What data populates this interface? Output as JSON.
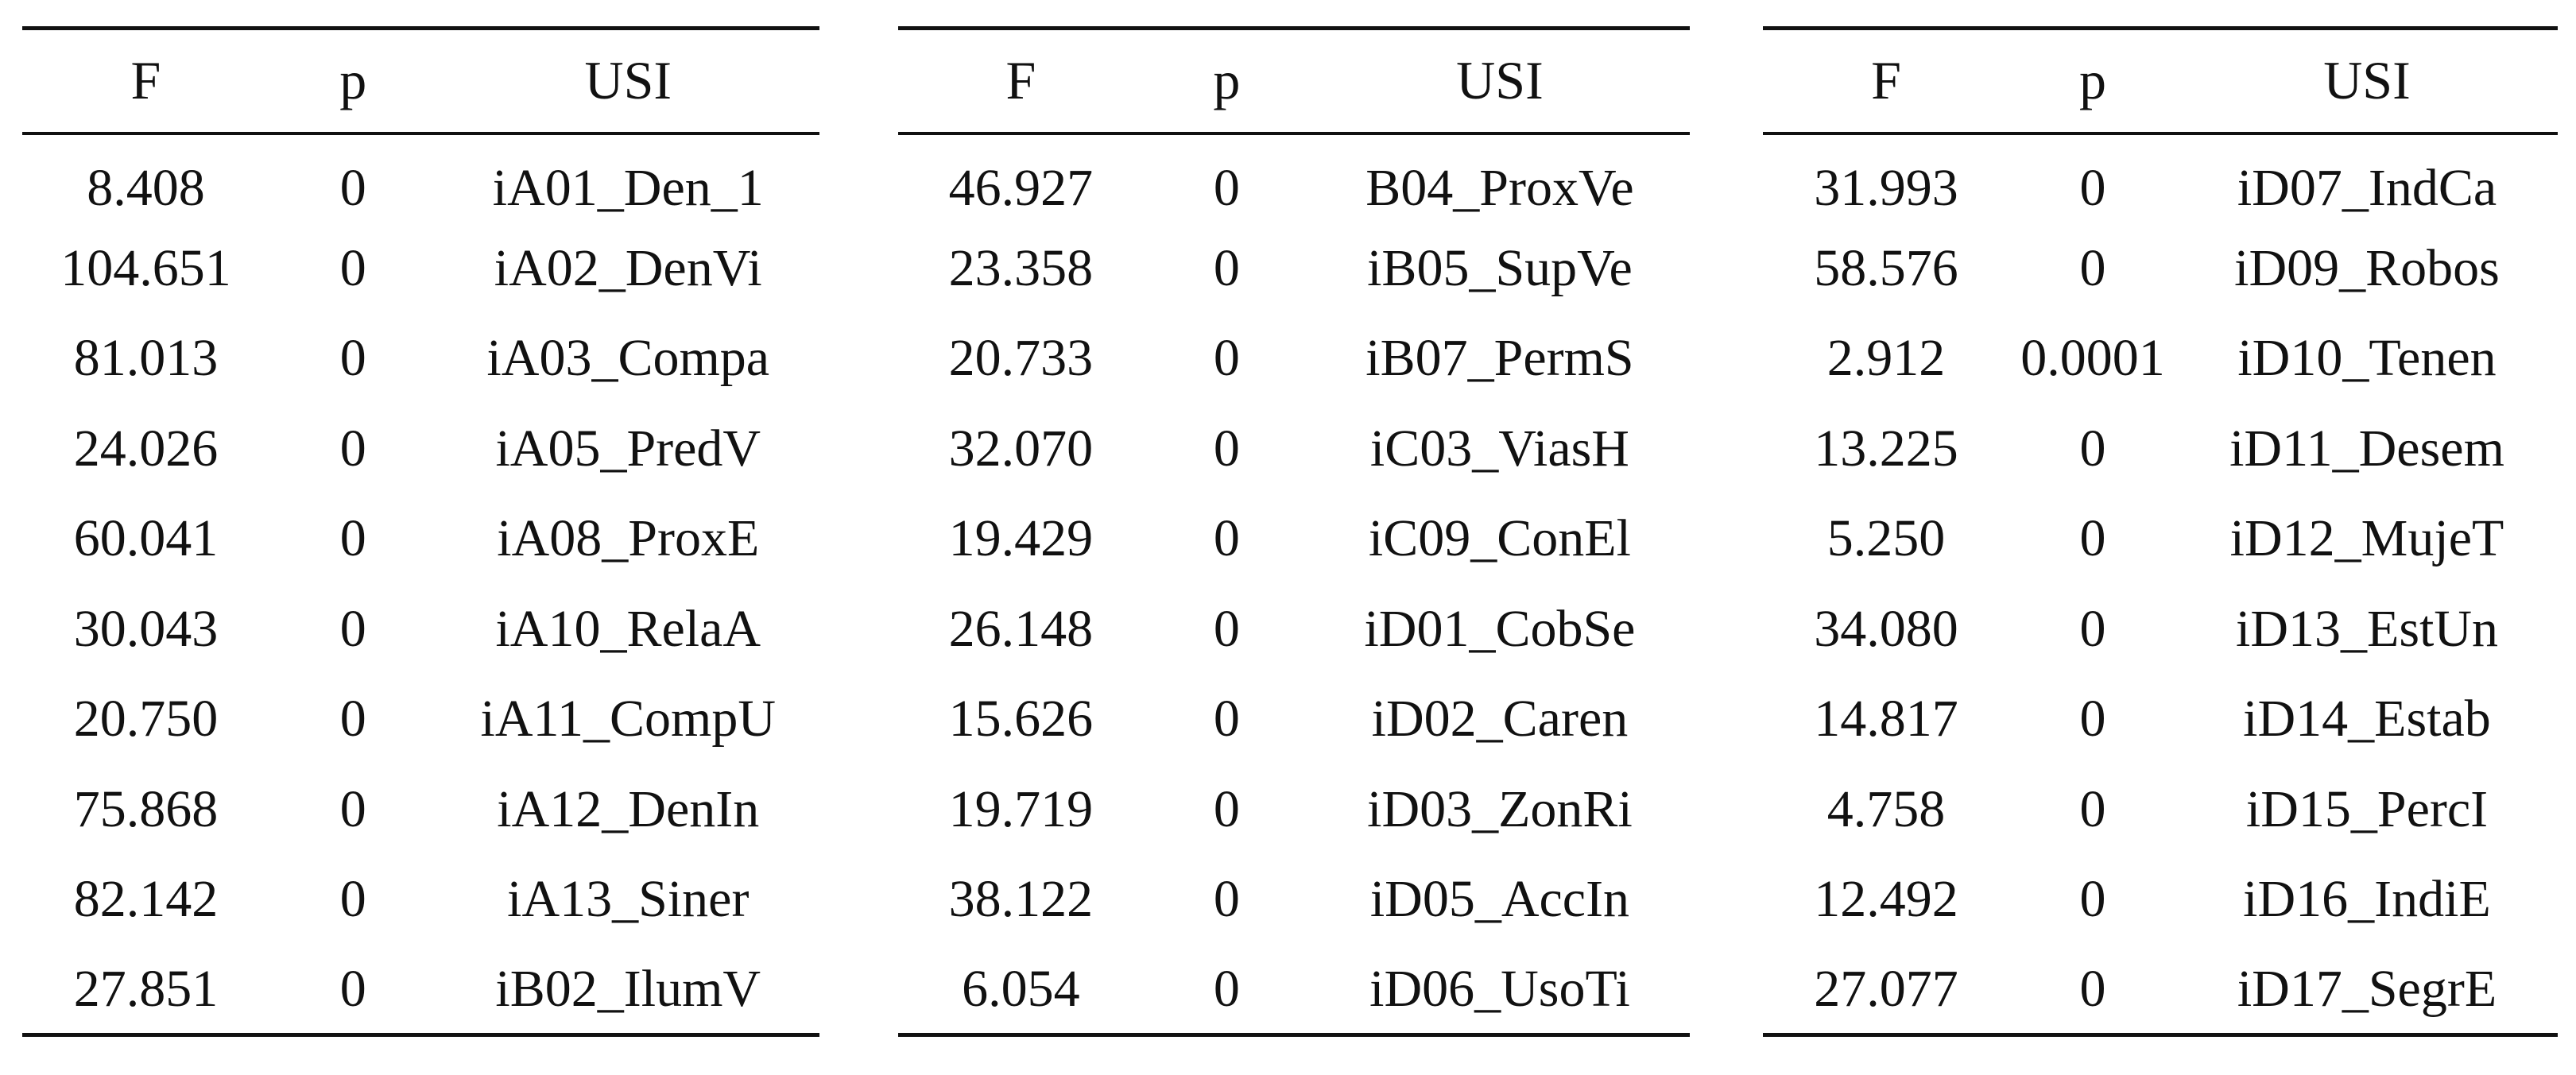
{
  "tables": [
    {
      "headers": [
        "F",
        "p",
        "USI"
      ],
      "rows": [
        {
          "f": "8.408",
          "p": "0",
          "usi": "iA01_Den_1"
        },
        {
          "f": "104.651",
          "p": "0",
          "usi": "iA02_DenVi"
        },
        {
          "f": "81.013",
          "p": "0",
          "usi": "iA03_Compa"
        },
        {
          "f": "24.026",
          "p": "0",
          "usi": "iA05_PredV"
        },
        {
          "f": "60.041",
          "p": "0",
          "usi": "iA08_ProxE"
        },
        {
          "f": "30.043",
          "p": "0",
          "usi": "iA10_RelaA"
        },
        {
          "f": "20.750",
          "p": "0",
          "usi": "iA11_CompU"
        },
        {
          "f": "75.868",
          "p": "0",
          "usi": "iA12_DenIn"
        },
        {
          "f": "82.142",
          "p": "0",
          "usi": "iA13_Siner"
        },
        {
          "f": "27.851",
          "p": "0",
          "usi": "iB02_IlumV"
        }
      ]
    },
    {
      "headers": [
        "F",
        "p",
        "USI"
      ],
      "rows": [
        {
          "f": "46.927",
          "p": "0",
          "usi": "B04_ProxVe"
        },
        {
          "f": "23.358",
          "p": "0",
          "usi": "iB05_SupVe"
        },
        {
          "f": "20.733",
          "p": "0",
          "usi": "iB07_PermS"
        },
        {
          "f": "32.070",
          "p": "0",
          "usi": "iC03_ViasH"
        },
        {
          "f": "19.429",
          "p": "0",
          "usi": "iC09_ConEl"
        },
        {
          "f": "26.148",
          "p": "0",
          "usi": "iD01_CobSe"
        },
        {
          "f": "15.626",
          "p": "0",
          "usi": "iD02_Caren"
        },
        {
          "f": "19.719",
          "p": "0",
          "usi": "iD03_ZonRi"
        },
        {
          "f": "38.122",
          "p": "0",
          "usi": "iD05_AccIn"
        },
        {
          "f": "6.054",
          "p": "0",
          "usi": "iD06_UsoTi"
        }
      ]
    },
    {
      "headers": [
        "F",
        "p",
        "USI"
      ],
      "rows": [
        {
          "f": "31.993",
          "p": "0",
          "usi": "iD07_IndCa"
        },
        {
          "f": "58.576",
          "p": "0",
          "usi": "iD09_Robos"
        },
        {
          "f": "2.912",
          "p": "0.0001",
          "usi": "iD10_Tenen"
        },
        {
          "f": "13.225",
          "p": "0",
          "usi": "iD11_Desem"
        },
        {
          "f": "5.250",
          "p": "0",
          "usi": "iD12_MujeT"
        },
        {
          "f": "34.080",
          "p": "0",
          "usi": "iD13_EstUn"
        },
        {
          "f": "14.817",
          "p": "0",
          "usi": "iD14_Estab"
        },
        {
          "f": "4.758",
          "p": "0",
          "usi": "iD15_PercI"
        },
        {
          "f": "12.492",
          "p": "0",
          "usi": "iD16_IndiE"
        },
        {
          "f": "27.077",
          "p": "0",
          "usi": "iD17_SegrE"
        }
      ]
    }
  ]
}
